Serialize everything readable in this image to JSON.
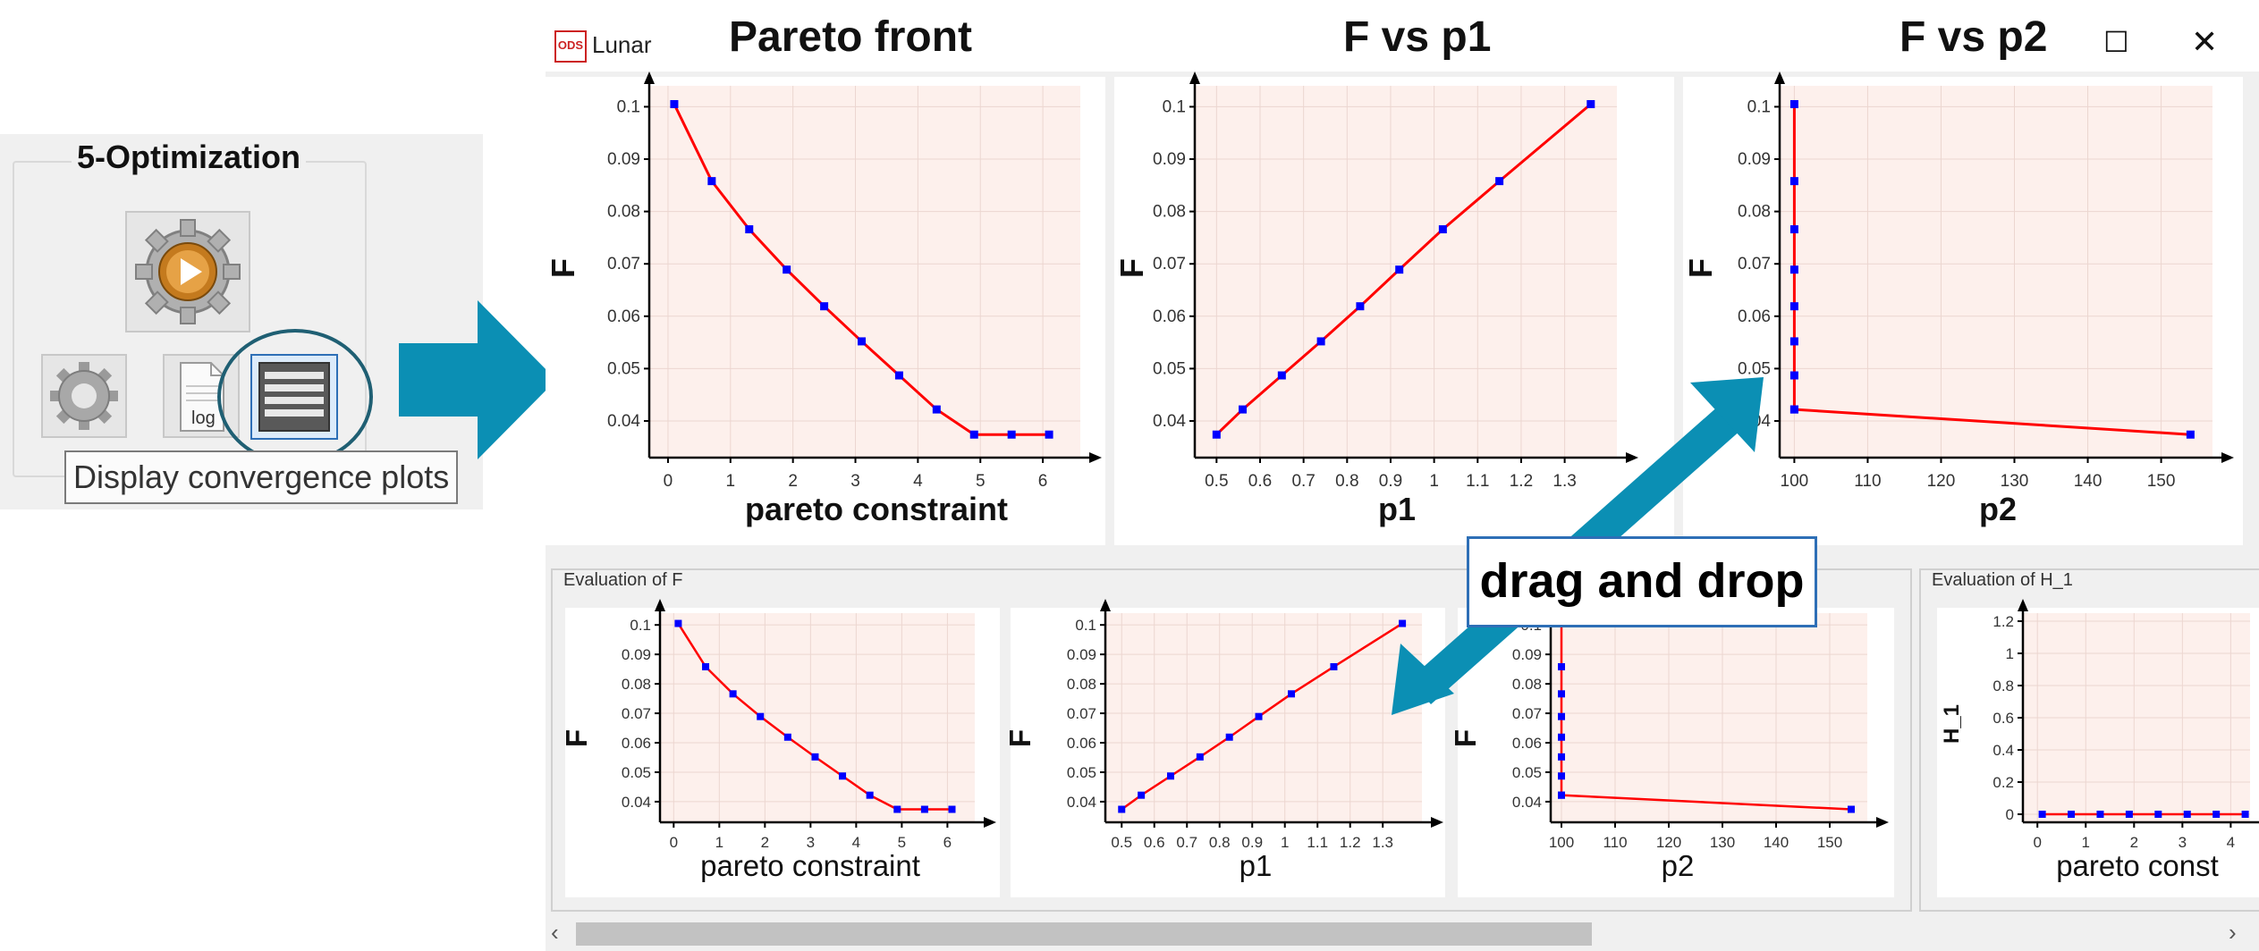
{
  "left_panel": {
    "group_title": "5-Optimization",
    "tooltip": "Display convergence plots",
    "buttons": [
      {
        "name": "run-optimization",
        "icon": "gear-play-icon"
      },
      {
        "name": "settings",
        "icon": "gear-icon"
      },
      {
        "name": "log",
        "icon": "log-icon",
        "label": "log"
      },
      {
        "name": "convergence-plots",
        "icon": "table-icon"
      }
    ]
  },
  "window": {
    "app_label": "ODS",
    "title": "Lunar",
    "controls": {
      "maximize": "☐",
      "close": "✕"
    }
  },
  "plot_titles": [
    "Pareto front",
    "F vs p1",
    "F vs p2"
  ],
  "annotation": {
    "text": "drag and drop"
  },
  "colors": {
    "line": "#ff0000",
    "marker": "#0000ff",
    "plot_bg": "#fdf0ec",
    "arrow": "#0b8fb4"
  },
  "sections": {
    "eval_f": "Evaluation of F",
    "eval_h1": "Evaluation of H_1"
  },
  "chart_data": [
    {
      "type": "line",
      "xlabel": "pareto constraint",
      "ylabel": "F",
      "x": [
        0.1,
        0.7,
        1.3,
        1.9,
        2.5,
        3.1,
        3.7,
        4.3,
        4.9,
        5.5,
        6.1
      ],
      "y": [
        0.1005,
        0.0858,
        0.0766,
        0.0689,
        0.0619,
        0.0552,
        0.0487,
        0.0422,
        0.0374,
        0.0374,
        0.0374
      ],
      "xlim": [
        -0.3,
        6.6
      ],
      "ylim": [
        0.033,
        0.104
      ],
      "xticks": [
        "0",
        "1",
        "2",
        "3",
        "4",
        "5",
        "6"
      ],
      "yticks": [
        "0.04",
        "0.05",
        "0.06",
        "0.07",
        "0.08",
        "0.09",
        "0.1"
      ]
    },
    {
      "type": "line",
      "xlabel": "p1",
      "ylabel": "F",
      "x": [
        0.5,
        0.56,
        0.65,
        0.74,
        0.83,
        0.92,
        1.02,
        1.15,
        1.36
      ],
      "y": [
        0.0374,
        0.0422,
        0.0487,
        0.0552,
        0.0619,
        0.0689,
        0.0766,
        0.0858,
        0.1005
      ],
      "xlim": [
        0.45,
        1.42
      ],
      "ylim": [
        0.033,
        0.104
      ],
      "xticks": [
        "0.5",
        "0.6",
        "0.7",
        "0.8",
        "0.9",
        "1",
        "1.1",
        "1.2",
        "1.3"
      ],
      "yticks": [
        "0.04",
        "0.05",
        "0.06",
        "0.07",
        "0.08",
        "0.09",
        "0.1"
      ]
    },
    {
      "type": "line",
      "xlabel": "p2",
      "ylabel": "F",
      "x": [
        100,
        100,
        100,
        100,
        100,
        100,
        100,
        100,
        100,
        154
      ],
      "y": [
        0.1005,
        0.0858,
        0.0766,
        0.0689,
        0.0619,
        0.0552,
        0.0487,
        0.0422,
        0.0422,
        0.0374
      ],
      "xlim": [
        98,
        157
      ],
      "ylim": [
        0.033,
        0.104
      ],
      "xticks": [
        "100",
        "110",
        "120",
        "130",
        "140",
        "150"
      ],
      "yticks": [
        "0.04",
        "0.05",
        "0.06",
        "0.07",
        "0.08",
        "0.09",
        "0.1"
      ]
    },
    {
      "type": "line",
      "xlabel": "pareto constraint",
      "ylabel": "F",
      "x": [
        0.1,
        0.7,
        1.3,
        1.9,
        2.5,
        3.1,
        3.7,
        4.3,
        4.9,
        5.5,
        6.1
      ],
      "y": [
        0.1005,
        0.0858,
        0.0766,
        0.0689,
        0.0619,
        0.0552,
        0.0487,
        0.0422,
        0.0374,
        0.0374,
        0.0374
      ],
      "xlim": [
        -0.3,
        6.6
      ],
      "ylim": [
        0.033,
        0.104
      ],
      "xticks": [
        "0",
        "1",
        "2",
        "3",
        "4",
        "5",
        "6"
      ],
      "yticks": [
        "0.04",
        "0.05",
        "0.06",
        "0.07",
        "0.08",
        "0.09",
        "0.1"
      ]
    },
    {
      "type": "line",
      "xlabel": "p1",
      "ylabel": "F",
      "x": [
        0.5,
        0.56,
        0.65,
        0.74,
        0.83,
        0.92,
        1.02,
        1.15,
        1.36
      ],
      "y": [
        0.0374,
        0.0422,
        0.0487,
        0.0552,
        0.0619,
        0.0689,
        0.0766,
        0.0858,
        0.1005
      ],
      "xlim": [
        0.45,
        1.42
      ],
      "ylim": [
        0.033,
        0.104
      ],
      "xticks": [
        "0.5",
        "0.6",
        "0.7",
        "0.8",
        "0.9",
        "1",
        "1.1",
        "1.2",
        "1.3"
      ],
      "yticks": [
        "0.04",
        "0.05",
        "0.06",
        "0.07",
        "0.08",
        "0.09",
        "0.1"
      ]
    },
    {
      "type": "line",
      "xlabel": "p2",
      "ylabel": "F",
      "x": [
        100,
        100,
        100,
        100,
        100,
        100,
        100,
        100,
        100,
        154
      ],
      "y": [
        0.1005,
        0.0858,
        0.0766,
        0.0689,
        0.0619,
        0.0552,
        0.0487,
        0.0422,
        0.0422,
        0.0374
      ],
      "xlim": [
        98,
        157
      ],
      "ylim": [
        0.033,
        0.104
      ],
      "xticks": [
        "100",
        "110",
        "120",
        "130",
        "140",
        "150"
      ],
      "yticks": [
        "0.04",
        "0.05",
        "0.06",
        "0.07",
        "0.08",
        "0.09",
        "0.1"
      ]
    },
    {
      "type": "line",
      "xlabel": "pareto const",
      "ylabel": "H_1",
      "x": [
        0.1,
        0.7,
        1.3,
        1.9,
        2.5,
        3.1,
        3.7,
        4.3
      ],
      "y": [
        0,
        0,
        0,
        0,
        0,
        0,
        0,
        0
      ],
      "xlim": [
        -0.3,
        4.4
      ],
      "ylim": [
        -0.05,
        1.25
      ],
      "xticks": [
        "0",
        "1",
        "2",
        "3",
        "4"
      ],
      "yticks": [
        "0",
        "0.2",
        "0.4",
        "0.6",
        "0.8",
        "1",
        "1.2"
      ]
    }
  ]
}
